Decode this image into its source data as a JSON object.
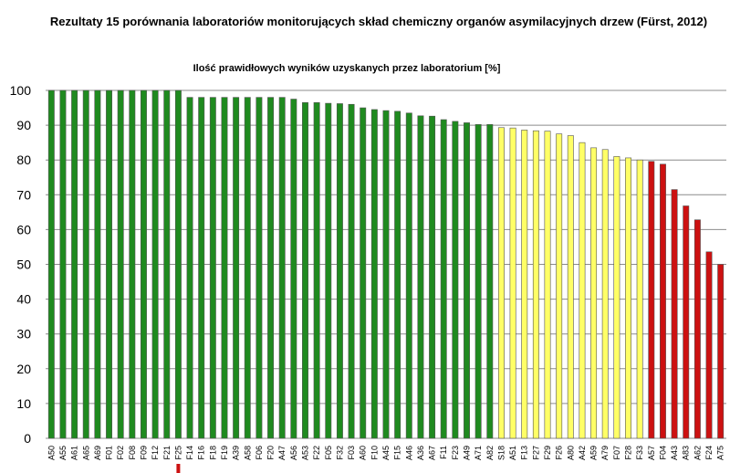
{
  "chart_data": {
    "type": "bar",
    "title": "Rezultaty 15 porównania laboratoriów monitorujących skład chemiczny organów asymilacyjnych drzew (Fürst, 2012)",
    "subtitle": "Ilość prawidłowych wyników uzyskanych przez laboratorium [%]",
    "ylim": [
      0,
      100
    ],
    "yticks": [
      0,
      10,
      20,
      30,
      40,
      50,
      60,
      70,
      80,
      90,
      100
    ],
    "grid": "horizontal",
    "categories": [
      "A50",
      "A55",
      "A61",
      "A65",
      "A69",
      "F01",
      "F02",
      "F08",
      "F09",
      "F12",
      "F21",
      "F25",
      "F14",
      "F16",
      "F18",
      "F19",
      "A39",
      "A58",
      "F06",
      "F20",
      "A47",
      "A56",
      "A53",
      "F22",
      "F05",
      "F32",
      "F03",
      "A60",
      "F10",
      "A45",
      "F15",
      "A46",
      "A36",
      "A67",
      "F11",
      "F23",
      "A49",
      "A71",
      "A82",
      "S18",
      "A51",
      "F13",
      "F27",
      "F29",
      "F26",
      "A80",
      "A42",
      "A59",
      "A79",
      "F07",
      "F28",
      "F33",
      "A57",
      "F04",
      "A43",
      "A83",
      "A62",
      "F24",
      "A75"
    ],
    "values": [
      100,
      100,
      100,
      100,
      100,
      100,
      100,
      100,
      100,
      100,
      100,
      100,
      98,
      98,
      98,
      98,
      98,
      98,
      98,
      98,
      98,
      97.5,
      96.5,
      96.5,
      96.3,
      96.2,
      96,
      95,
      94.5,
      94.2,
      94,
      93.5,
      92.7,
      92.6,
      91.6,
      91.1,
      90.7,
      90.2,
      90.2,
      89.3,
      89.2,
      88.6,
      88.4,
      88.3,
      87.5,
      87,
      85,
      83.5,
      83,
      81,
      80.6,
      80,
      79.6,
      78.8,
      71.5,
      66.8,
      62.8,
      53.6,
      50
    ],
    "colors": {
      "green": "#1f8a1f",
      "yellow": "#ffff66",
      "red": "#cc1111",
      "bar_stroke": "#555555",
      "grid": "#8c8c8c"
    },
    "value_colors": [
      "green",
      "green",
      "green",
      "green",
      "green",
      "green",
      "green",
      "green",
      "green",
      "green",
      "green",
      "green",
      "green",
      "green",
      "green",
      "green",
      "green",
      "green",
      "green",
      "green",
      "green",
      "green",
      "green",
      "green",
      "green",
      "green",
      "green",
      "green",
      "green",
      "green",
      "green",
      "green",
      "green",
      "green",
      "green",
      "green",
      "green",
      "green",
      "green",
      "yellow",
      "yellow",
      "yellow",
      "yellow",
      "yellow",
      "yellow",
      "yellow",
      "yellow",
      "yellow",
      "yellow",
      "yellow",
      "yellow",
      "yellow",
      "red",
      "red",
      "red",
      "red",
      "red",
      "red",
      "red"
    ],
    "marked_category": "F25",
    "legend": "none"
  }
}
